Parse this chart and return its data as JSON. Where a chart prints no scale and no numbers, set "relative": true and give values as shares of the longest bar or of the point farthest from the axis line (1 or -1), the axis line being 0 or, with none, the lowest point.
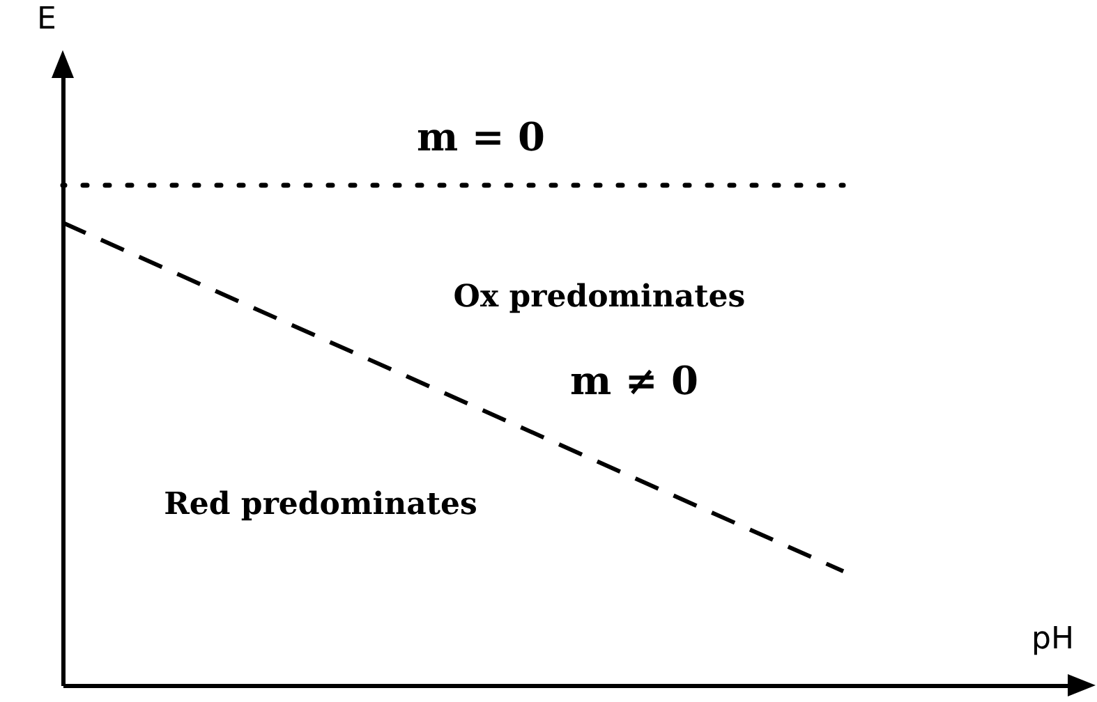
{
  "chart_data": {
    "type": "line",
    "relative": true,
    "xlabel": "pH",
    "ylabel": "E",
    "categories": [
      null,
      null
    ],
    "series": [
      {
        "name": "m = 0",
        "color": "#000000",
        "line_style": "dotted",
        "values": [
          1,
          1
        ]
      },
      {
        "name": "m ≠ 0",
        "color": "#000000",
        "line_style": "dashed",
        "values": [
          0.925,
          0.228
        ]
      }
    ],
    "annotations": [
      "Ox predominates",
      "Red predominates"
    ],
    "grid": false,
    "legend": false
  }
}
